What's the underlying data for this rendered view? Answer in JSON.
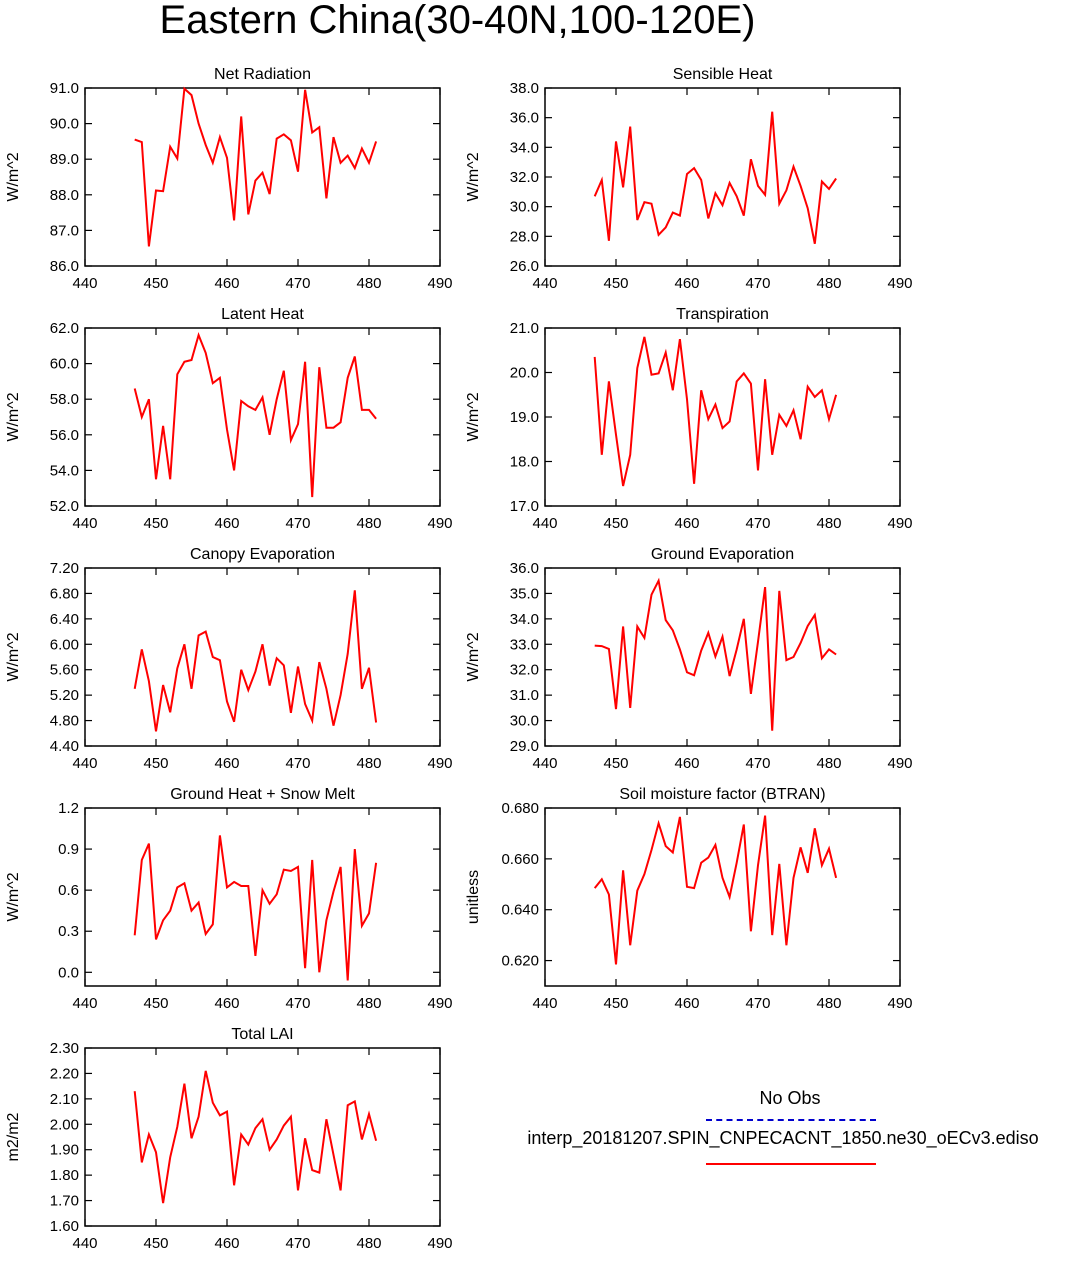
{
  "title": "Eastern China(30-40N,100-120E)",
  "colors": {
    "model": "#ff0000",
    "obs": "#0000cd",
    "axis": "#000000"
  },
  "legend": {
    "obs_label": "No Obs",
    "model_label": "interp_20181207.SPIN_CNPECACNT_1850.ne30_oECv3.ediso"
  },
  "chart_data": [
    {
      "type": "line",
      "title": "Net Radiation",
      "xlabel": "",
      "ylabel": "W/m^2",
      "xlim": [
        440,
        490
      ],
      "ylim": [
        86,
        91
      ],
      "xticks": [
        440,
        450,
        460,
        470,
        480,
        490
      ],
      "yticks": [
        86,
        87,
        88,
        89,
        90,
        91
      ],
      "ytick_labels": [
        "86.0",
        "87.0",
        "88.0",
        "89.0",
        "90.0",
        "91.0"
      ],
      "series": [
        {
          "name": "interp_20181207.SPIN_CNPECACNT_1850.ne30_oECv3.ediso",
          "x": [
            447,
            448,
            449,
            450,
            451,
            452,
            453,
            454,
            455,
            456,
            457,
            458,
            459,
            460,
            461,
            462,
            463,
            464,
            465,
            466,
            467,
            468,
            469,
            470,
            471,
            472,
            473,
            474,
            475,
            476,
            477,
            478,
            479,
            480,
            481
          ],
          "values": [
            89.55,
            89.48,
            86.55,
            88.12,
            88.1,
            89.35,
            89.02,
            90.98,
            90.8,
            90.0,
            89.4,
            88.9,
            89.62,
            89.04,
            87.28,
            90.2,
            87.45,
            88.4,
            88.62,
            88.02,
            89.58,
            89.7,
            89.53,
            88.65,
            90.95,
            89.75,
            89.9,
            87.9,
            89.62,
            88.9,
            89.1,
            88.75,
            89.3,
            88.9,
            89.5
          ]
        }
      ]
    },
    {
      "type": "line",
      "title": "Sensible Heat",
      "xlabel": "",
      "ylabel": "W/m^2",
      "xlim": [
        440,
        490
      ],
      "ylim": [
        26,
        38
      ],
      "xticks": [
        440,
        450,
        460,
        470,
        480,
        490
      ],
      "yticks": [
        26,
        28,
        30,
        32,
        34,
        36,
        38
      ],
      "ytick_labels": [
        "26.0",
        "28.0",
        "30.0",
        "32.0",
        "34.0",
        "36.0",
        "38.0"
      ],
      "series": [
        {
          "name": "interp_20181207.SPIN_CNPECACNT_1850.ne30_oECv3.ediso",
          "x": [
            447,
            448,
            449,
            450,
            451,
            452,
            453,
            454,
            455,
            456,
            457,
            458,
            459,
            460,
            461,
            462,
            463,
            464,
            465,
            466,
            467,
            468,
            469,
            470,
            471,
            472,
            473,
            474,
            475,
            476,
            477,
            478,
            479,
            480,
            481
          ],
          "values": [
            30.7,
            31.8,
            27.7,
            34.4,
            31.3,
            35.4,
            29.1,
            30.3,
            30.2,
            28.1,
            28.6,
            29.6,
            29.4,
            32.2,
            32.6,
            31.8,
            29.2,
            30.9,
            30.1,
            31.6,
            30.7,
            29.4,
            33.2,
            31.4,
            30.8,
            36.4,
            30.2,
            31.1,
            32.7,
            31.4,
            29.9,
            27.5,
            31.7,
            31.2,
            31.9
          ]
        }
      ]
    },
    {
      "type": "line",
      "title": "Latent Heat",
      "xlabel": "",
      "ylabel": "W/m^2",
      "xlim": [
        440,
        490
      ],
      "ylim": [
        52,
        62
      ],
      "xticks": [
        440,
        450,
        460,
        470,
        480,
        490
      ],
      "yticks": [
        52,
        54,
        56,
        58,
        60,
        62
      ],
      "ytick_labels": [
        "52.0",
        "54.0",
        "56.0",
        "58.0",
        "60.0",
        "62.0"
      ],
      "series": [
        {
          "name": "interp_20181207.SPIN_CNPECACNT_1850.ne30_oECv3.ediso",
          "x": [
            447,
            448,
            449,
            450,
            451,
            452,
            453,
            454,
            455,
            456,
            457,
            458,
            459,
            460,
            461,
            462,
            463,
            464,
            465,
            466,
            467,
            468,
            469,
            470,
            471,
            472,
            473,
            474,
            475,
            476,
            477,
            478,
            479,
            480,
            481
          ],
          "values": [
            58.6,
            57.0,
            58.0,
            53.5,
            56.5,
            53.5,
            59.4,
            60.1,
            60.2,
            61.6,
            60.6,
            58.9,
            59.2,
            56.3,
            54.0,
            57.9,
            57.6,
            57.4,
            58.1,
            56.0,
            58.0,
            59.6,
            55.7,
            56.6,
            60.1,
            52.5,
            59.8,
            56.4,
            56.4,
            56.7,
            59.2,
            60.4,
            57.4,
            57.4,
            56.9
          ]
        }
      ]
    },
    {
      "type": "line",
      "title": "Transpiration",
      "xlabel": "",
      "ylabel": "W/m^2",
      "xlim": [
        440,
        490
      ],
      "ylim": [
        17,
        21
      ],
      "xticks": [
        440,
        450,
        460,
        470,
        480,
        490
      ],
      "yticks": [
        17,
        18,
        19,
        20,
        21
      ],
      "ytick_labels": [
        "17.0",
        "18.0",
        "19.0",
        "20.0",
        "21.0"
      ],
      "series": [
        {
          "name": "interp_20181207.SPIN_CNPECACNT_1850.ne30_oECv3.ediso",
          "x": [
            447,
            448,
            449,
            450,
            451,
            452,
            453,
            454,
            455,
            456,
            457,
            458,
            459,
            460,
            461,
            462,
            463,
            464,
            465,
            466,
            467,
            468,
            469,
            470,
            471,
            472,
            473,
            474,
            475,
            476,
            477,
            478,
            479,
            480,
            481
          ],
          "values": [
            20.35,
            18.15,
            19.8,
            18.6,
            17.45,
            18.15,
            20.1,
            20.8,
            19.95,
            19.98,
            20.45,
            19.6,
            20.75,
            19.4,
            17.5,
            19.6,
            18.95,
            19.28,
            18.75,
            18.9,
            19.8,
            19.98,
            19.75,
            17.8,
            19.85,
            18.15,
            19.05,
            18.8,
            19.15,
            18.5,
            19.68,
            19.45,
            19.6,
            18.95,
            19.5
          ]
        }
      ]
    },
    {
      "type": "line",
      "title": "Canopy Evaporation",
      "xlabel": "",
      "ylabel": "W/m^2",
      "xlim": [
        440,
        490
      ],
      "ylim": [
        4.4,
        7.2
      ],
      "xticks": [
        440,
        450,
        460,
        470,
        480,
        490
      ],
      "yticks": [
        4.4,
        4.8,
        5.2,
        5.6,
        6.0,
        6.4,
        6.8,
        7.2
      ],
      "ytick_labels": [
        "4.40",
        "4.80",
        "5.20",
        "5.60",
        "6.00",
        "6.40",
        "6.80",
        "7.20"
      ],
      "series": [
        {
          "name": "interp_20181207.SPIN_CNPECACNT_1850.ne30_oECv3.ediso",
          "x": [
            447,
            448,
            449,
            450,
            451,
            452,
            453,
            454,
            455,
            456,
            457,
            458,
            459,
            460,
            461,
            462,
            463,
            464,
            465,
            466,
            467,
            468,
            469,
            470,
            471,
            472,
            473,
            474,
            475,
            476,
            477,
            478,
            479,
            480,
            481
          ],
          "values": [
            5.3,
            5.92,
            5.42,
            4.63,
            5.36,
            4.93,
            5.62,
            6.0,
            5.3,
            6.14,
            6.2,
            5.8,
            5.75,
            5.1,
            4.78,
            5.6,
            5.28,
            5.57,
            6.0,
            5.35,
            5.78,
            5.67,
            4.92,
            5.65,
            5.06,
            4.8,
            5.72,
            5.3,
            4.72,
            5.2,
            5.85,
            6.85,
            5.3,
            5.63,
            4.77
          ]
        }
      ]
    },
    {
      "type": "line",
      "title": "Ground Evaporation",
      "xlabel": "",
      "ylabel": "W/m^2",
      "xlim": [
        440,
        490
      ],
      "ylim": [
        29,
        36
      ],
      "xticks": [
        440,
        450,
        460,
        470,
        480,
        490
      ],
      "yticks": [
        29,
        30,
        31,
        32,
        33,
        34,
        35,
        36
      ],
      "ytick_labels": [
        "29.0",
        "30.0",
        "31.0",
        "32.0",
        "33.0",
        "34.0",
        "35.0",
        "36.0"
      ],
      "series": [
        {
          "name": "interp_20181207.SPIN_CNPECACNT_1850.ne30_oECv3.ediso",
          "x": [
            447,
            448,
            449,
            450,
            451,
            452,
            453,
            454,
            455,
            456,
            457,
            458,
            459,
            460,
            461,
            462,
            463,
            464,
            465,
            466,
            467,
            468,
            469,
            470,
            471,
            472,
            473,
            474,
            475,
            476,
            477,
            478,
            479,
            480,
            481
          ],
          "values": [
            32.95,
            32.93,
            32.82,
            30.45,
            33.7,
            30.5,
            33.7,
            33.25,
            34.95,
            35.5,
            33.95,
            33.55,
            32.8,
            31.9,
            31.78,
            32.75,
            33.45,
            32.52,
            33.3,
            31.75,
            32.8,
            34.0,
            31.05,
            33.1,
            35.25,
            29.6,
            35.1,
            32.38,
            32.5,
            33.05,
            33.72,
            34.15,
            32.45,
            32.8,
            32.6
          ]
        }
      ]
    },
    {
      "type": "line",
      "title": "Ground Heat + Snow Melt",
      "xlabel": "",
      "ylabel": "W/m^2",
      "xlim": [
        440,
        490
      ],
      "ylim": [
        -0.1,
        1.2
      ],
      "xticks": [
        440,
        450,
        460,
        470,
        480,
        490
      ],
      "yticks": [
        0.0,
        0.3,
        0.6,
        0.9,
        1.2
      ],
      "ytick_labels": [
        "0.0",
        "0.3",
        "0.6",
        "0.9",
        "1.2"
      ],
      "series": [
        {
          "name": "interp_20181207.SPIN_CNPECACNT_1850.ne30_oECv3.ediso",
          "x": [
            447,
            448,
            449,
            450,
            451,
            452,
            453,
            454,
            455,
            456,
            457,
            458,
            459,
            460,
            461,
            462,
            463,
            464,
            465,
            466,
            467,
            468,
            469,
            470,
            471,
            472,
            473,
            474,
            475,
            476,
            477,
            478,
            479,
            480,
            481
          ],
          "values": [
            0.27,
            0.82,
            0.94,
            0.24,
            0.38,
            0.45,
            0.62,
            0.65,
            0.45,
            0.51,
            0.28,
            0.35,
            1.0,
            0.62,
            0.66,
            0.63,
            0.63,
            0.12,
            0.6,
            0.5,
            0.57,
            0.75,
            0.74,
            0.77,
            0.03,
            0.82,
            0.0,
            0.38,
            0.59,
            0.77,
            -0.06,
            0.9,
            0.34,
            0.43,
            0.8
          ]
        }
      ]
    },
    {
      "type": "line",
      "title": "Soil moisture factor (BTRAN)",
      "xlabel": "",
      "ylabel": "unitless",
      "xlim": [
        440,
        490
      ],
      "ylim": [
        0.61,
        0.68
      ],
      "xticks": [
        440,
        450,
        460,
        470,
        480,
        490
      ],
      "yticks": [
        0.62,
        0.64,
        0.66,
        0.68
      ],
      "ytick_labels": [
        "0.620",
        "0.640",
        "0.660",
        "0.680"
      ],
      "series": [
        {
          "name": "interp_20181207.SPIN_CNPECACNT_1850.ne30_oECv3.ediso",
          "x": [
            447,
            448,
            449,
            450,
            451,
            452,
            453,
            454,
            455,
            456,
            457,
            458,
            459,
            460,
            461,
            462,
            463,
            464,
            465,
            466,
            467,
            468,
            469,
            470,
            471,
            472,
            473,
            474,
            475,
            476,
            477,
            478,
            479,
            480,
            481
          ],
          "values": [
            0.6485,
            0.652,
            0.646,
            0.6185,
            0.6555,
            0.626,
            0.6475,
            0.654,
            0.6635,
            0.674,
            0.665,
            0.6625,
            0.6765,
            0.649,
            0.6485,
            0.6585,
            0.6605,
            0.6655,
            0.6525,
            0.645,
            0.6585,
            0.6735,
            0.6315,
            0.6575,
            0.677,
            0.63,
            0.658,
            0.626,
            0.6525,
            0.6645,
            0.6545,
            0.672,
            0.6575,
            0.664,
            0.6525
          ]
        }
      ]
    },
    {
      "type": "line",
      "title": "Total LAI",
      "xlabel": "",
      "ylabel": "m2/m2",
      "xlim": [
        440,
        490
      ],
      "ylim": [
        1.6,
        2.3
      ],
      "xticks": [
        440,
        450,
        460,
        470,
        480,
        490
      ],
      "yticks": [
        1.6,
        1.7,
        1.8,
        1.9,
        2.0,
        2.1,
        2.2,
        2.3
      ],
      "ytick_labels": [
        "1.60",
        "1.70",
        "1.80",
        "1.90",
        "2.00",
        "2.10",
        "2.20",
        "2.30"
      ],
      "series": [
        {
          "name": "interp_20181207.SPIN_CNPECACNT_1850.ne30_oECv3.ediso",
          "x": [
            447,
            448,
            449,
            450,
            451,
            452,
            453,
            454,
            455,
            456,
            457,
            458,
            459,
            460,
            461,
            462,
            463,
            464,
            465,
            466,
            467,
            468,
            469,
            470,
            471,
            472,
            473,
            474,
            475,
            476,
            477,
            478,
            479,
            480,
            481
          ],
          "values": [
            2.13,
            1.85,
            1.96,
            1.89,
            1.69,
            1.87,
            1.99,
            2.16,
            1.945,
            2.03,
            2.21,
            2.085,
            2.035,
            2.05,
            1.76,
            1.96,
            1.92,
            1.985,
            2.02,
            1.9,
            1.94,
            1.995,
            2.03,
            1.74,
            1.945,
            1.82,
            1.81,
            2.02,
            1.88,
            1.74,
            2.075,
            2.09,
            1.94,
            2.04,
            1.935
          ]
        }
      ]
    }
  ]
}
